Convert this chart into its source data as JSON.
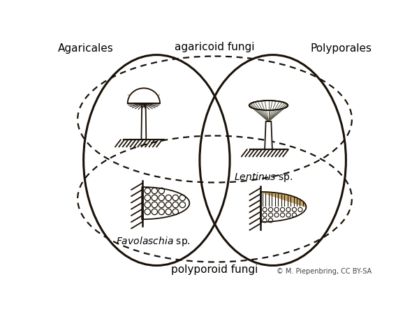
{
  "label_agaricales": "Agaricales",
  "label_polyporales": "Polyporales",
  "label_agaricoid": "agaricoid fungi",
  "label_polyporoid": "polyporoid fungi",
  "label_lentinus": "Lentinus sp.",
  "label_favolaschia": "Favolaschia sp.",
  "label_copyright": "© M. Piepenbring, CC BY-SA",
  "bg_color": "#ffffff",
  "tan_color": "#c8a86b",
  "line_color": "#1a1208"
}
